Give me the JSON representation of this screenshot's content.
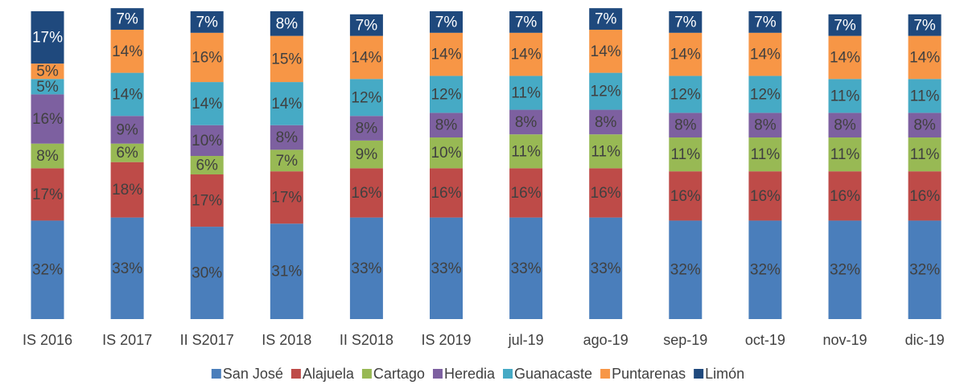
{
  "chart_data": {
    "type": "stacked_bar",
    "categories": [
      "IS 2016",
      "IS 2017",
      "II S2017",
      "IS 2018",
      "II S2018",
      "IS 2019",
      "jul-19",
      "ago-19",
      "sep-19",
      "oct-19",
      "nov-19",
      "dic-19"
    ],
    "ylim": [
      0,
      100
    ],
    "legend": "bottom",
    "series": [
      {
        "name": "San José",
        "color": "#4a7ebb",
        "values": [
          32,
          33,
          30,
          31,
          33,
          33,
          33,
          33,
          32,
          32,
          32,
          32
        ],
        "value_labels": [
          "32%",
          "33%",
          "30%",
          "31%",
          "33%",
          "33%",
          "33%",
          "33%",
          "32%",
          "32%",
          "32%",
          "32%"
        ]
      },
      {
        "name": "Alajuela",
        "color": "#be4b48",
        "values": [
          17,
          18,
          17,
          17,
          16,
          16,
          16,
          16,
          16,
          16,
          16,
          16
        ],
        "value_labels": [
          "17%",
          "18%",
          "17%",
          "17%",
          "16%",
          "16%",
          "16%",
          "16%",
          "16%",
          "16%",
          "16%",
          "16%"
        ]
      },
      {
        "name": "Cartago",
        "color": "#98b954",
        "values": [
          8,
          6,
          6,
          7,
          9,
          10,
          11,
          11,
          11,
          11,
          11,
          11
        ],
        "value_labels": [
          "8%",
          "6%",
          "6%",
          "7%",
          "9%",
          "10%",
          "11%",
          "11%",
          "11%",
          "11%",
          "11%",
          "11%"
        ]
      },
      {
        "name": "Heredia",
        "color": "#7d60a0",
        "values": [
          16,
          9,
          10,
          8,
          8,
          8,
          8,
          8,
          8,
          8,
          8,
          8
        ],
        "value_labels": [
          "16%",
          "9%",
          "10%",
          "8%",
          "8%",
          "8%",
          "8%",
          "8%",
          "8%",
          "8%",
          "8%",
          "8%"
        ]
      },
      {
        "name": "Guanacaste",
        "color": "#46aac5",
        "values": [
          5,
          14,
          14,
          14,
          12,
          12,
          11,
          12,
          12,
          12,
          11,
          11
        ],
        "value_labels": [
          "5%",
          "14%",
          "14%",
          "14%",
          "12%",
          "12%",
          "11%",
          "12%",
          "12%",
          "12%",
          "11%",
          "11%"
        ]
      },
      {
        "name": "Puntarenas",
        "color": "#f79646",
        "values": [
          5,
          14,
          16,
          15,
          14,
          14,
          14,
          14,
          14,
          14,
          14,
          14
        ],
        "value_labels": [
          "5%",
          "14%",
          "16%",
          "15%",
          "14%",
          "14%",
          "14%",
          "14%",
          "14%",
          "14%",
          "14%",
          "14%"
        ]
      },
      {
        "name": "Limón",
        "color": "#1f497d",
        "label_color": "#ffffff",
        "values": [
          17,
          7,
          7,
          8,
          7,
          7,
          7,
          7,
          7,
          7,
          7,
          7
        ],
        "value_labels": [
          "17%",
          "7%",
          "7%",
          "8%",
          "7%",
          "7%",
          "7%",
          "7%",
          "7%",
          "7%",
          "7%",
          "7%"
        ]
      }
    ]
  }
}
